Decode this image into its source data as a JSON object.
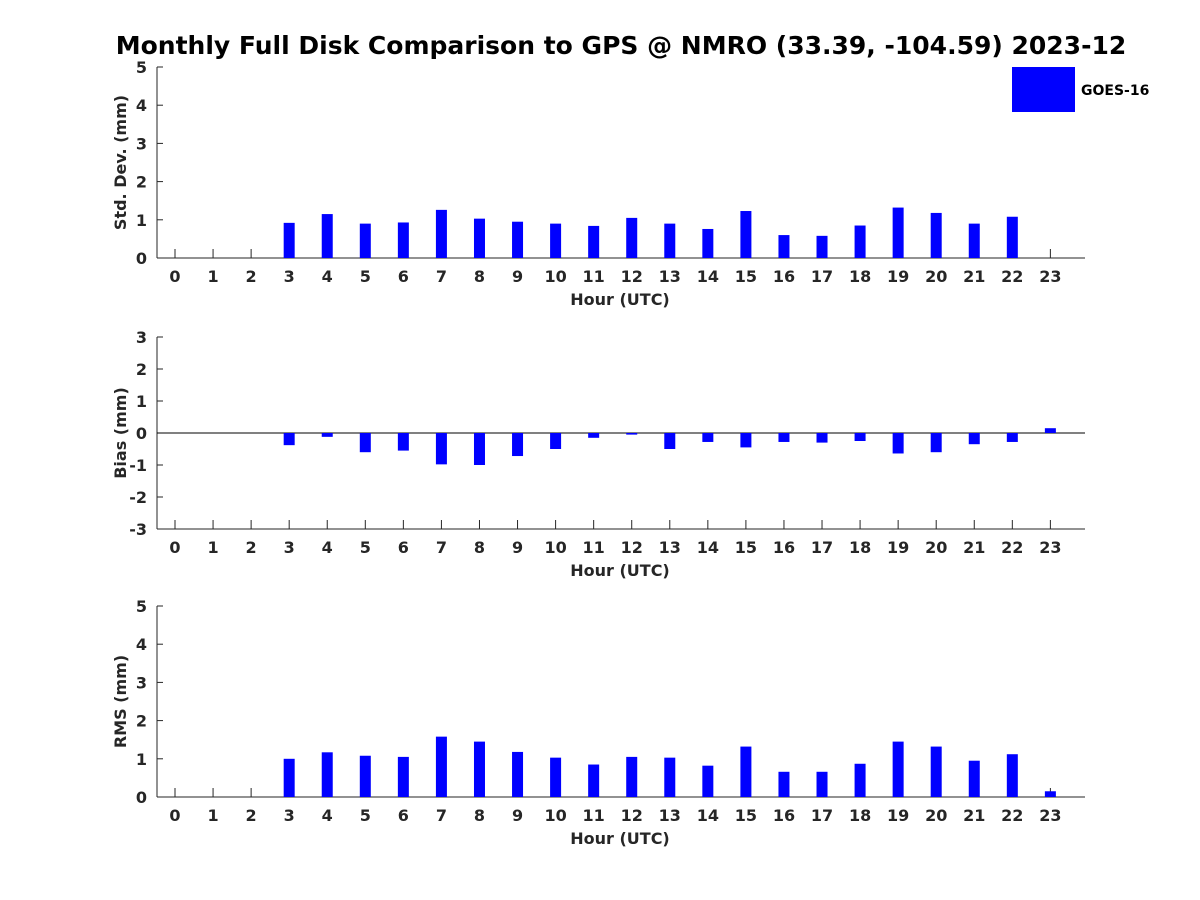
{
  "title": "Monthly Full Disk Comparison to GPS @ NMRO (33.39, -104.59) 2023-12",
  "legend": {
    "label": "GOES-16",
    "color": "#0000ff",
    "placement": "top-right"
  },
  "chart_data": [
    {
      "type": "bar",
      "ylabel": "Std. Dev. (mm)",
      "xlabel": "Hour (UTC)",
      "ylim": [
        0,
        5
      ],
      "yticks": [
        0,
        1,
        2,
        3,
        4,
        5
      ],
      "categories": [
        "0",
        "1",
        "2",
        "3",
        "4",
        "5",
        "6",
        "7",
        "8",
        "9",
        "10",
        "11",
        "12",
        "13",
        "14",
        "15",
        "16",
        "17",
        "18",
        "19",
        "20",
        "21",
        "22",
        "23"
      ],
      "series": [
        {
          "name": "GOES-16",
          "values": [
            null,
            null,
            null,
            0.92,
            1.15,
            0.9,
            0.93,
            1.26,
            1.03,
            0.95,
            0.9,
            0.84,
            1.05,
            0.9,
            0.76,
            1.23,
            0.6,
            0.58,
            0.85,
            1.32,
            1.18,
            0.9,
            1.08,
            null
          ]
        }
      ]
    },
    {
      "type": "bar",
      "ylabel": "Bias (mm)",
      "xlabel": "Hour (UTC)",
      "ylim": [
        -3,
        3
      ],
      "yticks": [
        -3,
        -2,
        -1,
        0,
        1,
        2,
        3
      ],
      "categories": [
        "0",
        "1",
        "2",
        "3",
        "4",
        "5",
        "6",
        "7",
        "8",
        "9",
        "10",
        "11",
        "12",
        "13",
        "14",
        "15",
        "16",
        "17",
        "18",
        "19",
        "20",
        "21",
        "22",
        "23"
      ],
      "series": [
        {
          "name": "GOES-16",
          "values": [
            null,
            null,
            null,
            -0.38,
            -0.12,
            -0.6,
            -0.55,
            -0.98,
            -1.0,
            -0.72,
            -0.5,
            -0.15,
            -0.05,
            -0.5,
            -0.28,
            -0.45,
            -0.28,
            -0.3,
            -0.25,
            -0.64,
            -0.6,
            -0.35,
            -0.28,
            0.15
          ]
        }
      ]
    },
    {
      "type": "bar",
      "ylabel": "RMS (mm)",
      "xlabel": "Hour (UTC)",
      "ylim": [
        0,
        5
      ],
      "yticks": [
        0,
        1,
        2,
        3,
        4,
        5
      ],
      "categories": [
        "0",
        "1",
        "2",
        "3",
        "4",
        "5",
        "6",
        "7",
        "8",
        "9",
        "10",
        "11",
        "12",
        "13",
        "14",
        "15",
        "16",
        "17",
        "18",
        "19",
        "20",
        "21",
        "22",
        "23"
      ],
      "series": [
        {
          "name": "GOES-16",
          "values": [
            null,
            null,
            null,
            1.0,
            1.17,
            1.08,
            1.05,
            1.58,
            1.45,
            1.18,
            1.03,
            0.85,
            1.05,
            1.03,
            0.82,
            1.32,
            0.66,
            0.66,
            0.87,
            1.45,
            1.32,
            0.95,
            1.12,
            0.15
          ]
        }
      ]
    }
  ]
}
